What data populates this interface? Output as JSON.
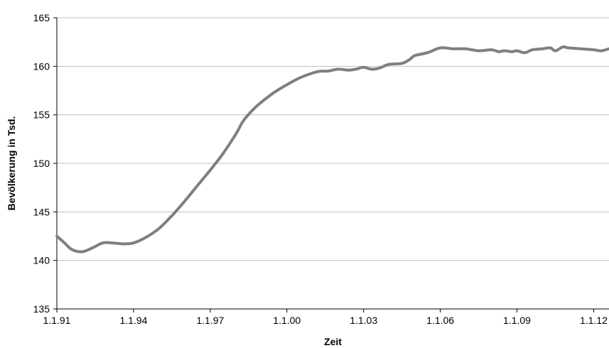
{
  "chart_data": {
    "type": "line",
    "title": "",
    "xlabel": "Zeit",
    "ylabel": "Bevölkerung in Tsd.",
    "ylim": [
      135,
      165
    ],
    "xlim": [
      1991.0,
      2012.6
    ],
    "y_ticks": [
      135,
      140,
      145,
      150,
      155,
      160,
      165
    ],
    "x_ticks": [
      {
        "label": "1.1.91",
        "value": 1991
      },
      {
        "label": "1.1.94",
        "value": 1994
      },
      {
        "label": "1.1.97",
        "value": 1997
      },
      {
        "label": "1.1.00",
        "value": 2000
      },
      {
        "label": "1.1.03",
        "value": 2003
      },
      {
        "label": "1.1.06",
        "value": 2006
      },
      {
        "label": "1.1.09",
        "value": 2009
      },
      {
        "label": "1.1.12",
        "value": 2012
      }
    ],
    "grid": {
      "horizontal": true,
      "vertical": false
    },
    "legend": "none",
    "colors": {
      "line": "#7f7f7f",
      "grid": "#c0c0c0",
      "axis": "#000000"
    },
    "series": [
      {
        "x": [
          1991.0,
          1991.3,
          1991.6,
          1992.0,
          1992.4,
          1992.8,
          1993.2,
          1993.6,
          1994.0,
          1994.5,
          1995.0,
          1995.5,
          1996.0,
          1996.5,
          1997.0,
          1997.5,
          1998.0,
          1998.3,
          1998.7,
          1999.0,
          1999.5,
          2000.0,
          2000.5,
          2001.0,
          2001.3,
          2001.6,
          2002.0,
          2002.4,
          2002.7,
          2003.0,
          2003.3,
          2003.6,
          2004.0,
          2004.5,
          2004.8,
          2005.0,
          2005.5,
          2006.0,
          2006.5,
          2007.0,
          2007.5,
          2008.0,
          2008.3,
          2008.5,
          2008.8,
          2009.0,
          2009.3,
          2009.6,
          2010.0,
          2010.3,
          2010.5,
          2010.8,
          2011.0,
          2011.5,
          2012.0,
          2012.3,
          2012.6
        ],
        "values": [
          142.5,
          141.8,
          141.1,
          140.9,
          141.3,
          141.8,
          141.8,
          141.7,
          141.8,
          142.4,
          143.3,
          144.6,
          146.1,
          147.7,
          149.3,
          151.0,
          153.0,
          154.4,
          155.6,
          156.3,
          157.3,
          158.1,
          158.8,
          159.3,
          159.5,
          159.5,
          159.7,
          159.6,
          159.7,
          159.9,
          159.7,
          159.8,
          160.2,
          160.3,
          160.7,
          161.1,
          161.4,
          161.9,
          161.8,
          161.8,
          161.6,
          161.7,
          161.5,
          161.6,
          161.5,
          161.6,
          161.4,
          161.7,
          161.8,
          161.9,
          161.6,
          162.0,
          161.9,
          161.8,
          161.7,
          161.6,
          161.8
        ]
      }
    ]
  }
}
